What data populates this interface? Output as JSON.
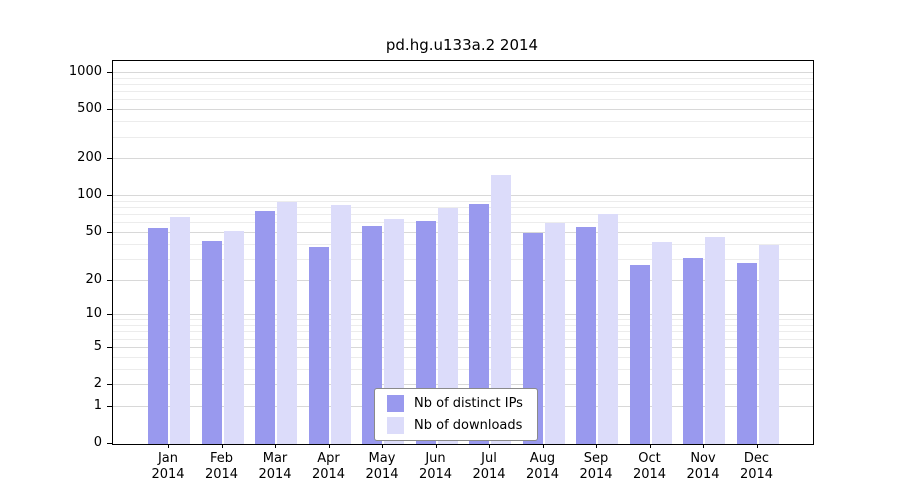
{
  "chart_data": {
    "type": "bar",
    "title": "pd.hg.u133a.2 2014",
    "categories": [
      "Jan",
      "Feb",
      "Mar",
      "Apr",
      "May",
      "Jun",
      "Jul",
      "Aug",
      "Sep",
      "Oct",
      "Nov",
      "Dec"
    ],
    "year_label": "2014",
    "series": [
      {
        "name": "Nb of distinct IPs",
        "color": "#9999ee",
        "values": [
          55,
          43,
          75,
          38,
          57,
          63,
          87,
          50,
          56,
          27,
          31,
          28
        ]
      },
      {
        "name": "Nb of downloads",
        "color": "#dcdcfa",
        "values": [
          68,
          52,
          90,
          84,
          65,
          80,
          150,
          60,
          71,
          42,
          46,
          40
        ]
      }
    ],
    "y_ticks": [
      0,
      1,
      2,
      5,
      10,
      20,
      50,
      100,
      200,
      500,
      1000
    ],
    "y_minor_ticks": [
      3,
      4,
      6,
      7,
      8,
      9,
      30,
      40,
      60,
      70,
      80,
      90,
      300,
      400,
      600,
      700,
      800,
      900
    ],
    "y_scale": "log10(1+x)",
    "ylim": [
      0,
      1000
    ],
    "grid": true,
    "legend_position": "bottom-center-inside"
  },
  "colors": {
    "bar_ips": "#9999ee",
    "bar_downloads": "#dcdcfa",
    "grid_major": "#d8d8d8",
    "grid_minor": "#ececec",
    "axis": "#000000",
    "background": "#ffffff"
  }
}
